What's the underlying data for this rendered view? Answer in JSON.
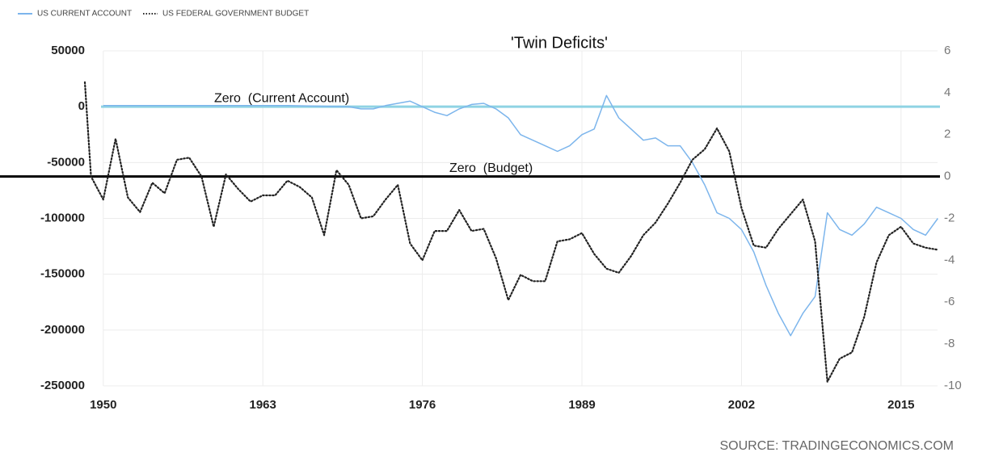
{
  "chart_data": {
    "type": "line",
    "title": "'Twin Deficits'",
    "source": "SOURCE: TRADINGECONOMICS.COM",
    "xlim": [
      1948.5,
      2018.5
    ],
    "xticks": [
      1950,
      1963,
      1976,
      1989,
      2002,
      2015
    ],
    "ylim": [
      -250000,
      50000
    ],
    "yticks": [
      50000,
      0,
      -50000,
      -100000,
      -150000,
      -200000,
      -250000
    ],
    "y2lim": [
      -10,
      6
    ],
    "y2ticks": [
      6,
      4,
      2,
      0,
      -2,
      -4,
      -6,
      -8,
      -10
    ],
    "grid": true,
    "legend": "top-left",
    "series": [
      {
        "name": "US CURRENT ACCOUNT",
        "color": "#7cb5ec",
        "axis": "y",
        "x": [
          1950,
          1955,
          1960,
          1965,
          1970,
          1971,
          1972,
          1973,
          1974,
          1975,
          1976,
          1977,
          1978,
          1979,
          1980,
          1981,
          1982,
          1983,
          1984,
          1985,
          1986,
          1987,
          1988,
          1989,
          1990,
          1991,
          1992,
          1993,
          1994,
          1995,
          1996,
          1997,
          1998,
          1999,
          2000,
          2001,
          2002,
          2003,
          2004,
          2005,
          2006,
          2007,
          2008,
          2009,
          2010,
          2011,
          2012,
          2013,
          2014,
          2015,
          2016,
          2017,
          2018
        ],
        "values": [
          1000,
          1000,
          1000,
          1000,
          0,
          -2000,
          -2000,
          1000,
          3000,
          5000,
          0,
          -5000,
          -8000,
          -2000,
          2000,
          3000,
          -2000,
          -10000,
          -25000,
          -30000,
          -35000,
          -40000,
          -35000,
          -25000,
          -20000,
          10000,
          -10000,
          -20000,
          -30000,
          -28000,
          -35000,
          -35000,
          -50000,
          -70000,
          -95000,
          -100000,
          -110000,
          -130000,
          -160000,
          -185000,
          -205000,
          -185000,
          -170000,
          -95000,
          -110000,
          -115000,
          -105000,
          -90000,
          -95000,
          -100000,
          -110000,
          -115000,
          -100000
        ]
      },
      {
        "name": "US FEDERAL GOVERNMENT BUDGET",
        "color": "#222222",
        "axis": "y2",
        "x": [
          1948.5,
          1949,
          1950,
          1951,
          1952,
          1953,
          1954,
          1955,
          1956,
          1957,
          1958,
          1959,
          1960,
          1961,
          1962,
          1963,
          1964,
          1965,
          1966,
          1967,
          1968,
          1969,
          1970,
          1971,
          1972,
          1973,
          1974,
          1975,
          1976,
          1977,
          1978,
          1979,
          1980,
          1981,
          1982,
          1983,
          1984,
          1985,
          1986,
          1987,
          1988,
          1989,
          1990,
          1991,
          1992,
          1993,
          1994,
          1995,
          1996,
          1997,
          1998,
          1999,
          2000,
          2001,
          2002,
          2003,
          2004,
          2005,
          2006,
          2007,
          2008,
          2009,
          2010,
          2011,
          2012,
          2013,
          2014,
          2015,
          2016,
          2017,
          2018
        ],
        "values": [
          4.5,
          0,
          -1.1,
          1.8,
          -1,
          -1.7,
          -0.3,
          -0.8,
          0.8,
          0.9,
          0,
          -2.4,
          0.1,
          -0.6,
          -1.2,
          -0.9,
          -0.9,
          -0.2,
          -0.5,
          -1.0,
          -2.8,
          0.3,
          -0.4,
          -2.0,
          -1.9,
          -1.1,
          -0.4,
          -3.2,
          -4.0,
          -2.6,
          -2.6,
          -1.6,
          -2.6,
          -2.5,
          -3.9,
          -5.9,
          -4.7,
          -5.0,
          -5.0,
          -3.1,
          -3.0,
          -2.7,
          -3.7,
          -4.4,
          -4.6,
          -3.8,
          -2.8,
          -2.2,
          -1.3,
          -0.3,
          0.8,
          1.3,
          2.3,
          1.2,
          -1.5,
          -3.3,
          -3.4,
          -2.5,
          -1.8,
          -1.1,
          -3.1,
          -9.8,
          -8.7,
          -8.4,
          -6.7,
          -4.1,
          -2.8,
          -2.4,
          -3.2,
          -3.4,
          -3.5
        ]
      }
    ],
    "annotations": [
      {
        "text": "Zero  (Current Account)",
        "axis": "y",
        "value": 0,
        "color": "#8fd3e3"
      },
      {
        "text": "Zero  (Budget)",
        "axis": "y2",
        "value": 0,
        "color": "#000000"
      }
    ]
  }
}
